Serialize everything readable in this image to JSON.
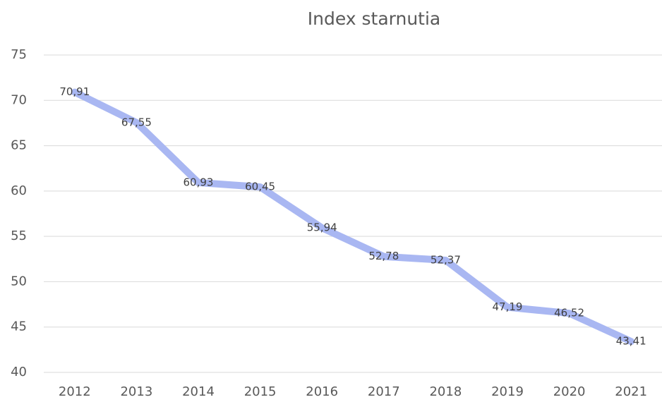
{
  "chart_data": {
    "type": "line",
    "title": "Index starnutia",
    "categories": [
      "2012",
      "2013",
      "2014",
      "2015",
      "2016",
      "2017",
      "2018",
      "2019",
      "2020",
      "2021"
    ],
    "values": [
      70.91,
      67.55,
      60.93,
      60.45,
      55.94,
      52.78,
      52.37,
      47.19,
      46.52,
      43.41
    ],
    "value_labels": [
      "70,91",
      "67,55",
      "60,93",
      "60,45",
      "55,94",
      "52,78",
      "52,37",
      "47,19",
      "46,52",
      "43,41"
    ],
    "color": "#a9b7f2",
    "ylim": [
      40,
      75
    ],
    "yticks": [
      40,
      45,
      50,
      55,
      60,
      65,
      70,
      75
    ],
    "grid": true
  }
}
